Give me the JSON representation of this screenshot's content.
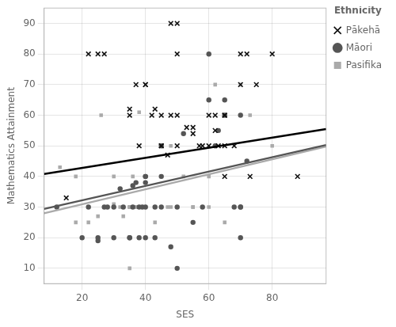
{
  "chart_data": {
    "type": "scatter",
    "xlabel": "SES",
    "ylabel": "Mathematics Attainment",
    "xlim": [
      8,
      97
    ],
    "ylim": [
      5,
      95
    ],
    "xticks": [
      20,
      40,
      60,
      80
    ],
    "yticks": [
      10,
      20,
      30,
      40,
      50,
      60,
      70,
      80,
      90
    ],
    "grid": true,
    "legend": "right",
    "legend_title": "Ethnicity",
    "series": [
      {
        "name": "Pākehā",
        "color": "#111111",
        "marker": "x",
        "x": [
          15,
          22,
          25,
          27,
          35,
          35,
          37,
          38,
          40,
          40,
          42,
          43,
          45,
          45,
          45,
          47,
          48,
          48,
          50,
          50,
          50,
          50,
          53,
          55,
          55,
          57,
          58,
          60,
          60,
          62,
          62,
          63,
          65,
          65,
          65,
          65,
          68,
          70,
          70,
          72,
          73,
          75,
          80,
          88
        ],
        "values": [
          33,
          80,
          80,
          80,
          62,
          60,
          70,
          50,
          70,
          70,
          60,
          62,
          50,
          50,
          60,
          47,
          90,
          60,
          90,
          80,
          60,
          50,
          56,
          56,
          54,
          50,
          50,
          60,
          50,
          60,
          55,
          50,
          60,
          50,
          60,
          40,
          50,
          80,
          70,
          80,
          40,
          70,
          80,
          40
        ]
      },
      {
        "name": "Māori",
        "color": "#555555",
        "marker": "circle",
        "x": [
          12,
          20,
          22,
          25,
          25,
          27,
          28,
          30,
          30,
          32,
          33,
          35,
          35,
          36,
          36,
          37,
          38,
          38,
          39,
          40,
          40,
          40,
          40,
          40,
          43,
          43,
          45,
          45,
          45,
          48,
          50,
          50,
          52,
          55,
          58,
          60,
          60,
          62,
          63,
          65,
          65,
          68,
          70,
          70,
          70,
          70,
          72
        ],
        "values": [
          30,
          20,
          30,
          20,
          19,
          30,
          30,
          20,
          30,
          36,
          30,
          20,
          20,
          37,
          30,
          38,
          20,
          30,
          30,
          20,
          30,
          40,
          38,
          40,
          20,
          30,
          30,
          50,
          40,
          17,
          10,
          30,
          54,
          25,
          30,
          65,
          80,
          50,
          55,
          60,
          65,
          30,
          30,
          20,
          30,
          60,
          45
        ]
      },
      {
        "name": "Pasifika",
        "color": "#aaaaaa",
        "marker": "square",
        "x": [
          13,
          18,
          18,
          20,
          22,
          25,
          26,
          28,
          28,
          30,
          30,
          30,
          32,
          33,
          35,
          35,
          35,
          35,
          36,
          37,
          37,
          38,
          38,
          39,
          40,
          40,
          40,
          40,
          43,
          43,
          45,
          45,
          47,
          48,
          48,
          50,
          50,
          52,
          55,
          55,
          58,
          60,
          60,
          62,
          65,
          65,
          65,
          68,
          70,
          70,
          73,
          80
        ],
        "values": [
          43,
          40,
          25,
          20,
          25,
          27,
          60,
          30,
          30,
          30,
          31,
          40,
          30,
          27,
          30,
          30,
          10,
          30,
          40,
          30,
          30,
          30,
          61,
          30,
          40,
          30,
          40,
          30,
          30,
          25,
          50,
          40,
          30,
          50,
          30,
          30,
          30,
          40,
          30,
          30,
          30,
          40,
          30,
          70,
          60,
          25,
          60,
          30,
          70,
          30,
          60,
          50
        ]
      },
      {
        "type": "line",
        "color": "#aaaaaa",
        "x": [
          8,
          97
        ],
        "values": [
          27.96,
          49.765
        ]
      },
      {
        "type": "line",
        "color": "#555555",
        "x": [
          8,
          97
        ],
        "values": [
          29.38,
          50.295
        ]
      },
      {
        "type": "line",
        "color": "#000000",
        "x": [
          8,
          97
        ],
        "values": [
          40.82,
          55.505
        ]
      }
    ]
  }
}
